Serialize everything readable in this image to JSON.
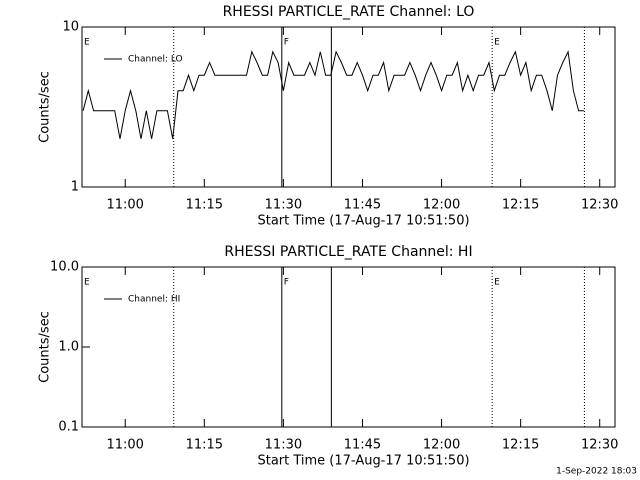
{
  "chart_data": [
    {
      "type": "line",
      "title": "RHESSI PARTICLE_RATE Channel: LO",
      "xlabel": "Start Time (17-Aug-17 10:51:50)",
      "ylabel": "Counts/sec",
      "log_y": true,
      "xlim": [
        651.8,
        752.9
      ],
      "ylim": [
        1,
        10
      ],
      "xticks": [
        {
          "value": 660,
          "label": "11:00"
        },
        {
          "value": 675,
          "label": "11:15"
        },
        {
          "value": 690,
          "label": "11:30"
        },
        {
          "value": 705,
          "label": "11:45"
        },
        {
          "value": 720,
          "label": "12:00"
        },
        {
          "value": 735,
          "label": "12:15"
        },
        {
          "value": 750,
          "label": "12:30"
        }
      ],
      "yticks": [
        1,
        10
      ],
      "markers": [
        {
          "x": 651.8,
          "label": "E"
        },
        {
          "x": 669.2,
          "style": "dotted"
        },
        {
          "x": 689.7,
          "style": "solid",
          "label": "F"
        },
        {
          "x": 699.1,
          "style": "solid"
        },
        {
          "x": 729.6,
          "style": "dotted",
          "label": "E"
        },
        {
          "x": 747.1,
          "style": "dotted"
        }
      ],
      "series": [
        {
          "name": "Channel: LO",
          "color": "#000000",
          "x": [
            652,
            653,
            654,
            655,
            656,
            657,
            658,
            659,
            660,
            661,
            662,
            663,
            664,
            665,
            666,
            667,
            668,
            669,
            670,
            671,
            672,
            673,
            674,
            675,
            676,
            677,
            678,
            679,
            680,
            681,
            682,
            683,
            684,
            685,
            686,
            687,
            688,
            689,
            690,
            691,
            692,
            693,
            694,
            695,
            696,
            697,
            698,
            699,
            700,
            701,
            702,
            703,
            704,
            705,
            706,
            707,
            708,
            709,
            710,
            711,
            712,
            713,
            714,
            715,
            716,
            717,
            718,
            719,
            720,
            721,
            722,
            723,
            724,
            725,
            726,
            727,
            728,
            729,
            730,
            731,
            732,
            733,
            734,
            735,
            736,
            737,
            738,
            739,
            740,
            741,
            742,
            743,
            744,
            745,
            746,
            747
          ],
          "values": [
            3,
            4,
            3,
            3,
            3,
            3,
            3,
            2,
            3,
            4,
            3,
            2,
            3,
            2,
            3,
            3,
            3,
            2,
            4,
            4,
            5,
            4,
            5,
            5,
            6,
            5,
            5,
            5,
            5,
            5,
            5,
            5,
            7,
            6,
            5,
            5,
            7,
            6,
            4,
            6,
            5,
            5,
            5,
            6,
            5,
            7,
            5,
            5,
            7,
            6,
            5,
            5,
            6,
            5,
            4,
            5,
            5,
            6,
            4,
            5,
            5,
            5,
            6,
            5,
            4,
            5,
            6,
            5,
            4,
            5,
            5,
            6,
            4,
            5,
            4,
            5,
            5,
            6,
            4,
            5,
            5,
            6,
            7,
            5,
            6,
            4,
            5,
            5,
            4,
            3,
            5,
            6,
            7,
            4,
            3,
            3
          ]
        }
      ]
    },
    {
      "type": "line",
      "title": "RHESSI PARTICLE_RATE Channel: HI",
      "xlabel": "Start Time (17-Aug-17 10:51:50)",
      "ylabel": "Counts/sec",
      "log_y": true,
      "xlim": [
        651.8,
        752.9
      ],
      "ylim": [
        0.1,
        10
      ],
      "xticks": [
        {
          "value": 660,
          "label": "11:00"
        },
        {
          "value": 675,
          "label": "11:15"
        },
        {
          "value": 690,
          "label": "11:30"
        },
        {
          "value": 705,
          "label": "11:45"
        },
        {
          "value": 720,
          "label": "12:00"
        },
        {
          "value": 735,
          "label": "12:15"
        },
        {
          "value": 750,
          "label": "12:30"
        }
      ],
      "yticks": [
        0.1,
        {
          "value": 1,
          "label": "1.0"
        },
        {
          "value": 10,
          "label": "10.0"
        }
      ],
      "markers": [
        {
          "x": 651.8,
          "label": "E"
        },
        {
          "x": 669.2,
          "style": "dotted"
        },
        {
          "x": 689.7,
          "style": "solid",
          "label": "F"
        },
        {
          "x": 699.1,
          "style": "solid"
        },
        {
          "x": 729.6,
          "style": "dotted",
          "label": "E"
        },
        {
          "x": 747.1,
          "style": "dotted"
        }
      ],
      "series": [
        {
          "name": "Channel: HI",
          "color": "#000000",
          "x": [],
          "values": []
        }
      ]
    }
  ],
  "footer": "1-Sep-2022 18:03"
}
